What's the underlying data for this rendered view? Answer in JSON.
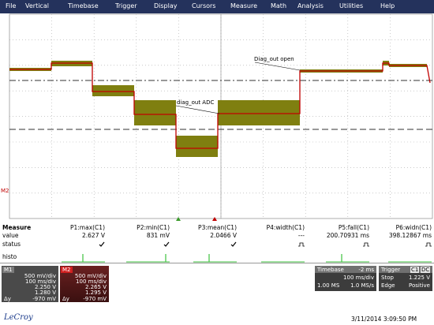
{
  "menu": [
    "File",
    "Vertical",
    "Timebase",
    "Trigger",
    "Display",
    "Cursors",
    "Measure",
    "Math",
    "Analysis",
    "Utilities",
    "Help"
  ],
  "waveform": {
    "annotations": [
      "Diag_out open",
      "diag_out ADC"
    ],
    "marker": "M2"
  },
  "measure": {
    "title": "Measure",
    "row_labels": [
      "value",
      "status"
    ],
    "histo_label": "histo",
    "columns": [
      {
        "name": "P1:max(C1)",
        "value": "2.627 V"
      },
      {
        "name": "P2:min(C1)",
        "value": "831 mV"
      },
      {
        "name": "P3:mean(C1)",
        "value": "2.0466 V"
      },
      {
        "name": "P4:width(C1)",
        "value": "---"
      },
      {
        "name": "P5:fall(C1)",
        "value": "200.70931 ms"
      },
      {
        "name": "P6:widn(C1)",
        "value": "398.12867 ms"
      }
    ]
  },
  "channels": [
    {
      "label": "M1",
      "scale": "500 mV/div",
      "timebase": "100 ms/div",
      "cursor1": "2.250 V",
      "cursor2": "1.280 V",
      "delta_label": "Δy",
      "delta": "-970 mV"
    },
    {
      "label": "M2",
      "scale": "500 mV/div",
      "timebase": "100 ms/div",
      "cursor1": "2.265 V",
      "cursor2": "1.295 V",
      "delta_label": "Δy",
      "delta": "-970 mV"
    }
  ],
  "timebase": {
    "title": "Timebase",
    "delay": "-2 ms",
    "scale": "100 ms/div",
    "samples": "1.00 MS",
    "rate": "1.0 MS/s"
  },
  "trigger": {
    "title": "Trigger",
    "channel": "C1",
    "coupling": "DC",
    "mode": "Stop",
    "level": "1.225 V",
    "type": "Edge",
    "slope": "Positive"
  },
  "footer": {
    "brand": "LeCroy",
    "timestamp": "3/11/2014 3:09:50 PM"
  }
}
